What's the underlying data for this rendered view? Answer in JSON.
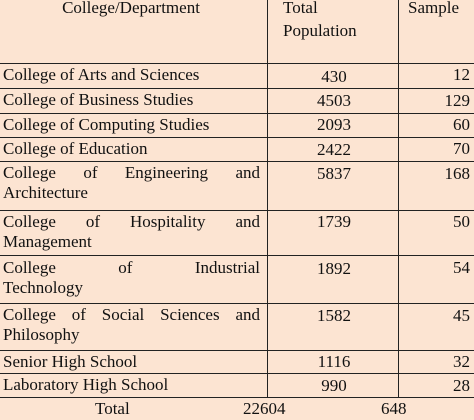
{
  "table": {
    "headers": {
      "department": "College/Department",
      "population_line1": "Total",
      "population_line2": "Population",
      "sample": "Sample"
    },
    "rows": [
      {
        "name": "College of Arts and Sciences",
        "population": "430",
        "sample": "12"
      },
      {
        "name": "College of Business Studies",
        "population": "4503",
        "sample": "129"
      },
      {
        "name": "College of Computing Studies",
        "population": "2093",
        "sample": "60"
      },
      {
        "name": "College of Education",
        "population": "2422",
        "sample": "70"
      },
      {
        "name_line1": "College of Engineering and",
        "name_line2": "Architecture",
        "population": "5837",
        "sample": "168"
      },
      {
        "name_line1": "College of Hospitality and",
        "name_line2": "Management",
        "population": "1739",
        "sample": "50"
      },
      {
        "name_line1": "College of Industrial",
        "name_line2": "Technology",
        "population": "1892",
        "sample": "54"
      },
      {
        "name_line1": "College of Social Sciences and",
        "name_line2": "Philosophy",
        "population": "1582",
        "sample": "45"
      },
      {
        "name": "Senior High School",
        "population": "1116",
        "sample": "32"
      },
      {
        "name": "Laboratory High School",
        "population": "990",
        "sample": "28"
      }
    ],
    "total": {
      "label": "Total",
      "population": "22604",
      "sample": "648"
    }
  }
}
